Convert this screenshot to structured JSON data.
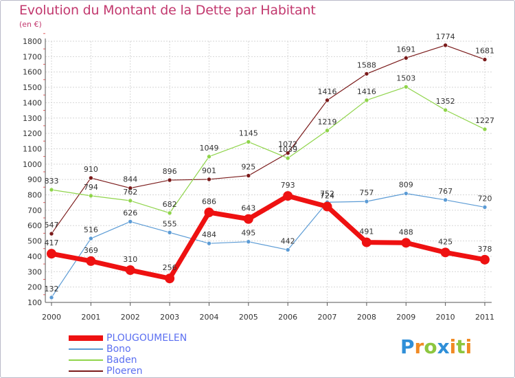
{
  "title": "Evolution du Montant de la Dette par Habitant",
  "unit": "(en €)",
  "logo": {
    "text": "Proxiti",
    "letters": [
      {
        "ch": "P",
        "color": "#2f8fd8"
      },
      {
        "ch": "r",
        "color": "#f08a24"
      },
      {
        "ch": "o",
        "color": "#8dc63f"
      },
      {
        "ch": "x",
        "color": "#2f8fd8"
      },
      {
        "ch": "i",
        "color": "#f08a24"
      },
      {
        "ch": "t",
        "color": "#8dc63f"
      },
      {
        "ch": "i",
        "color": "#f08a24"
      }
    ]
  },
  "chart_data": {
    "type": "line",
    "title": "Evolution du Montant de la Dette par Habitant",
    "ylabel": "(en €)",
    "xlabel": "",
    "categories": [
      "2000",
      "2001",
      "2002",
      "2003",
      "2004",
      "2005",
      "2006",
      "2007",
      "2008",
      "2009",
      "2010",
      "2011"
    ],
    "ylim": [
      100,
      1800
    ],
    "yticks": [
      100,
      200,
      300,
      400,
      500,
      600,
      700,
      800,
      900,
      1000,
      1100,
      1200,
      1300,
      1400,
      1500,
      1600,
      1700,
      1800
    ],
    "grid": true,
    "legend_position": "bottom-left",
    "series": [
      {
        "name": "PLOUGOUMELEN",
        "color": "#ee1111",
        "values": [
          417,
          369,
          310,
          256,
          686,
          643,
          793,
          724,
          491,
          488,
          425,
          378
        ],
        "labels": [
          "417",
          "369",
          "310",
          "256",
          "686",
          "643",
          "793",
          "724",
          "491",
          "488",
          "425",
          "378"
        ]
      },
      {
        "name": "Bono",
        "color": "#5b9bd5",
        "values": [
          132,
          516,
          626,
          555,
          484,
          495,
          442,
          752,
          757,
          809,
          767,
          720
        ],
        "labels": [
          "132",
          "516",
          "626",
          "555",
          "484",
          "495",
          "442",
          "752",
          "757",
          "809",
          "767",
          "720"
        ]
      },
      {
        "name": "Baden",
        "color": "#8fd44a",
        "values": [
          833,
          794,
          762,
          682,
          1049,
          1145,
          1039,
          1219,
          1416,
          1503,
          1352,
          1227
        ],
        "labels": [
          "833",
          "794",
          "762",
          "682",
          "1049",
          "1145",
          "1039",
          "1219",
          "1416",
          "1503",
          "1352",
          "1227"
        ]
      },
      {
        "name": "Ploeren",
        "color": "#7a1a1a",
        "values": [
          547,
          910,
          844,
          896,
          901,
          925,
          1072,
          1416,
          1588,
          1691,
          1774,
          1681
        ],
        "labels": [
          "547",
          "910",
          "844",
          "896",
          "901",
          "925",
          "1072",
          "1416",
          "1588",
          "1691",
          "1774",
          "1681"
        ]
      }
    ]
  }
}
